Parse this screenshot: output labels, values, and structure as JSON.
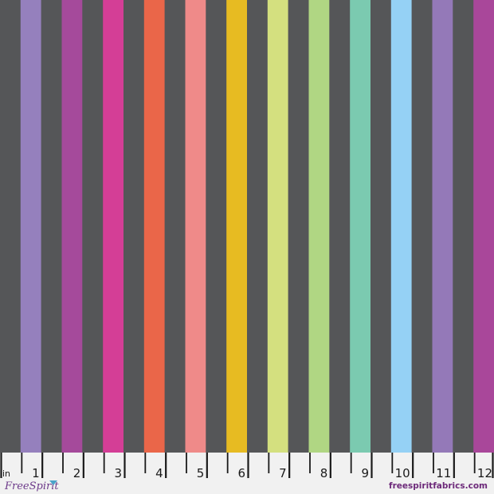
{
  "fabric": {
    "ground_color": "#555658",
    "stripe_colors": [
      "#9580bd",
      "#a54a9b",
      "#d43e96",
      "#ea6649",
      "#ef8a89",
      "#e7bb22",
      "#d4e07f",
      "#b0d683",
      "#7bcab0",
      "#95d1f5",
      "#9479b8",
      "#a9479a"
    ]
  },
  "ruler": {
    "unit": "in",
    "labels": [
      "1",
      "2",
      "3",
      "4",
      "5",
      "6",
      "7",
      "8",
      "9",
      "10",
      "11",
      "12"
    ],
    "background": "#f1f1f1"
  },
  "brand": {
    "logo_text": "FreeSpirit",
    "website": "freespiritfabrics.com"
  }
}
